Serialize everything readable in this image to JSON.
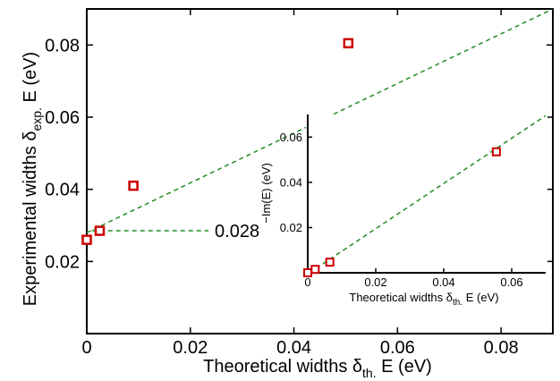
{
  "colors": {
    "marker": "#cc0000",
    "fit_line": "#228b22",
    "axis": "#000000"
  },
  "chart_data": [
    {
      "type": "scatter",
      "xlabel_main": "Theoretical widths δ",
      "xlabel_sub": "th.",
      "xlabel_tail": " E (eV)",
      "ylabel_main": "Experimental widths δ",
      "ylabel_sub": "exp.",
      "ylabel_tail": " E (eV)",
      "xlim": [
        0,
        0.09
      ],
      "ylim": [
        0,
        0.09
      ],
      "xticks": [
        "0",
        "0.02",
        "0.04",
        "0.06",
        "0.08"
      ],
      "xtick_values": [
        0,
        0.02,
        0.04,
        0.06,
        0.08
      ],
      "yticks": [
        "0.02",
        "0.04",
        "0.06",
        "0.08"
      ],
      "ytick_values": [
        0.02,
        0.04,
        0.06,
        0.08
      ],
      "series": [
        {
          "points": [
            {
              "x": 0.0,
              "y": 0.026
            },
            {
              "x": 0.0025,
              "y": 0.0285
            },
            {
              "x": 0.009,
              "y": 0.041
            },
            {
              "x": 0.0505,
              "y": 0.0805
            }
          ]
        }
      ],
      "fit_line": {
        "x": [
          0,
          0.09
        ],
        "y": [
          0.028,
          0.09
        ]
      },
      "annotation": {
        "text": "0.028",
        "x_from": 0.001,
        "x_to": 0.0235,
        "y": 0.0285
      },
      "grid": false
    },
    {
      "type": "scatter",
      "xlabel_main": "Theoretical widths δ",
      "xlabel_sub": "th.",
      "xlabel_tail": " E (eV)",
      "ylabel": "−Im(E) (eV)",
      "xlim": [
        0,
        0.07
      ],
      "ylim": [
        0,
        0.07
      ],
      "xticks": [
        "0",
        "0.02",
        "0.04",
        "0.06"
      ],
      "xtick_values": [
        0,
        0.02,
        0.04,
        0.06
      ],
      "yticks": [
        "0.02",
        "0.04",
        "0.06"
      ],
      "ytick_values": [
        0.02,
        0.04,
        0.06
      ],
      "series": [
        {
          "points": [
            {
              "x": 0.0,
              "y": 0.0
            },
            {
              "x": 0.0022,
              "y": 0.0015
            },
            {
              "x": 0.0065,
              "y": 0.0047
            },
            {
              "x": 0.0555,
              "y": 0.0535
            }
          ]
        }
      ],
      "fit_line": {
        "x": [
          0.0005,
          0.07
        ],
        "y": [
          0.0,
          0.0695
        ]
      },
      "grid": false
    }
  ]
}
